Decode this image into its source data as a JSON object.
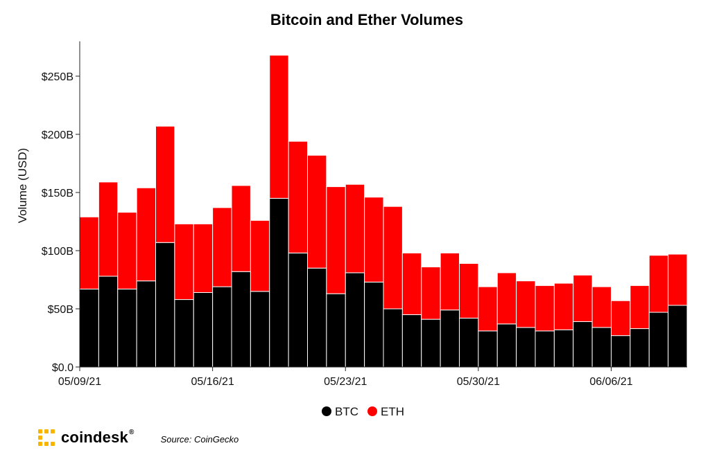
{
  "chart_data": {
    "type": "bar",
    "stacked": true,
    "title": "Bitcoin and Ether Volumes",
    "ylabel": "Volume (USD)",
    "xlabel": "",
    "ylim": [
      0,
      280
    ],
    "y_unit": "billions USD",
    "yticks": [
      0,
      50,
      100,
      150,
      200,
      250
    ],
    "ytick_labels": [
      "$0.0",
      "$50B",
      "$100B",
      "$150B",
      "$200B",
      "$250B"
    ],
    "x": [
      "2021-05-09",
      "2021-05-10",
      "2021-05-11",
      "2021-05-12",
      "2021-05-13",
      "2021-05-14",
      "2021-05-15",
      "2021-05-16",
      "2021-05-17",
      "2021-05-18",
      "2021-05-19",
      "2021-05-20",
      "2021-05-21",
      "2021-05-22",
      "2021-05-23",
      "2021-05-24",
      "2021-05-25",
      "2021-05-26",
      "2021-05-27",
      "2021-05-28",
      "2021-05-29",
      "2021-05-30",
      "2021-05-31",
      "2021-06-01",
      "2021-06-02",
      "2021-06-03",
      "2021-06-04",
      "2021-06-05",
      "2021-06-06",
      "2021-06-07",
      "2021-06-08",
      "2021-06-09"
    ],
    "xtick_labels": [
      "05/09/21",
      "05/16/21",
      "05/23/21",
      "05/30/21",
      "06/06/21"
    ],
    "xtick_positions": [
      "2021-05-09",
      "2021-05-16",
      "2021-05-23",
      "2021-05-30",
      "2021-06-06"
    ],
    "series": [
      {
        "name": "BTC",
        "color": "#000000",
        "values": [
          67,
          78,
          67,
          74,
          107,
          58,
          64,
          69,
          82,
          65,
          145,
          98,
          85,
          63,
          81,
          73,
          50,
          45,
          41,
          49,
          42,
          31,
          37,
          34,
          31,
          32,
          39,
          34,
          27,
          33,
          47,
          53
        ]
      },
      {
        "name": "ETH",
        "color": "#ff0000",
        "values": [
          62,
          81,
          66,
          80,
          100,
          65,
          59,
          68,
          74,
          61,
          123,
          96,
          97,
          92,
          76,
          73,
          88,
          53,
          45,
          49,
          47,
          38,
          44,
          40,
          39,
          40,
          40,
          35,
          30,
          37,
          49,
          44
        ]
      }
    ],
    "legend_position": "bottom-center",
    "grid": false
  },
  "legend": {
    "btc_label": "BTC",
    "eth_label": "ETH"
  },
  "footer": {
    "brand": "coindesk",
    "brand_mark": "®",
    "source": "Source: CoinGecko"
  }
}
